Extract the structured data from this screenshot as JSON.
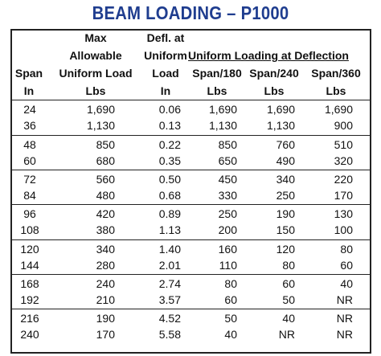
{
  "title": "BEAM LOADING – P1000",
  "header": {
    "span": [
      "Span",
      "In"
    ],
    "max_load": [
      "Max",
      "Allowable",
      "Uniform Load",
      "Lbs"
    ],
    "defl": [
      "Defl. at",
      "Uniform",
      "Load",
      "In"
    ],
    "group": "Uniform Loading at Deflection",
    "s180": [
      "Span/180",
      "Lbs"
    ],
    "s240": [
      "Span/240",
      "Lbs"
    ],
    "s360": [
      "Span/360",
      "Lbs"
    ]
  },
  "rows": [
    [
      "24",
      "1,690",
      "0.06",
      "1,690",
      "1,690",
      "1,690"
    ],
    [
      "36",
      "1,130",
      "0.13",
      "1,130",
      "1,130",
      "900"
    ],
    [
      "48",
      "850",
      "0.22",
      "850",
      "760",
      "510"
    ],
    [
      "60",
      "680",
      "0.35",
      "650",
      "490",
      "320"
    ],
    [
      "72",
      "560",
      "0.50",
      "450",
      "340",
      "220"
    ],
    [
      "84",
      "480",
      "0.68",
      "330",
      "250",
      "170"
    ],
    [
      "96",
      "420",
      "0.89",
      "250",
      "190",
      "130"
    ],
    [
      "108",
      "380",
      "1.13",
      "200",
      "150",
      "100"
    ],
    [
      "120",
      "340",
      "1.40",
      "160",
      "120",
      "80"
    ],
    [
      "144",
      "280",
      "2.01",
      "110",
      "80",
      "60"
    ],
    [
      "168",
      "240",
      "2.74",
      "80",
      "60",
      "40"
    ],
    [
      "192",
      "210",
      "3.57",
      "60",
      "50",
      "NR"
    ],
    [
      "216",
      "190",
      "4.52",
      "50",
      "40",
      "NR"
    ],
    [
      "240",
      "170",
      "5.58",
      "40",
      "NR",
      "NR"
    ]
  ]
}
